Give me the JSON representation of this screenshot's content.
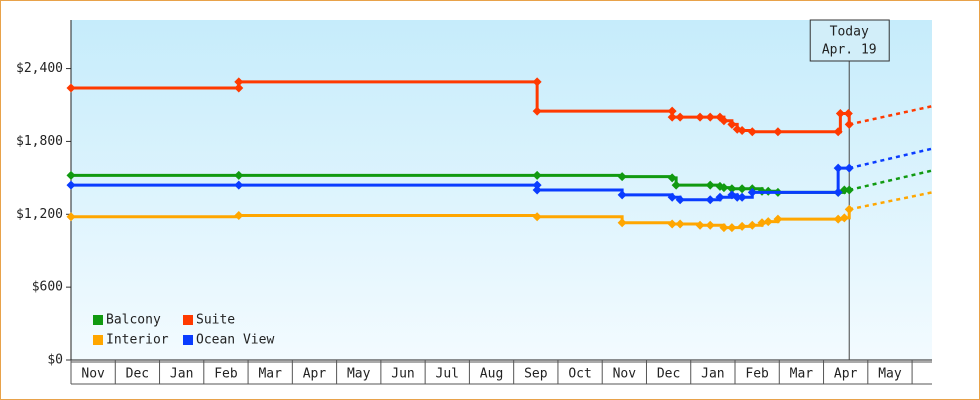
{
  "chart_data": {
    "type": "step-line",
    "categories": [
      "Nov",
      "Dec",
      "Jan",
      "Feb",
      "Mar",
      "Apr",
      "May",
      "Jun",
      "Jul",
      "Aug",
      "Sep",
      "Oct",
      "Nov",
      "Dec",
      "Jan",
      "Feb",
      "Mar",
      "Apr",
      "May"
    ],
    "xlim": [
      0,
      19.45
    ],
    "ylim": [
      0,
      2800
    ],
    "yticks": [
      {
        "value": 0,
        "label": "$0"
      },
      {
        "value": 600,
        "label": "$600"
      },
      {
        "value": 1200,
        "label": "$1,200"
      },
      {
        "value": 1800,
        "label": "$1,800"
      },
      {
        "value": 2400,
        "label": "$2,400"
      }
    ],
    "legend": "lower-left",
    "annotation": {
      "label": "Today",
      "date": "Apr. 19",
      "x": 17.58
    },
    "series": [
      {
        "name": "Balcony",
        "color": "#119a11",
        "x": [
          0,
          3.79,
          10.53,
          12.45,
          13.58,
          13.67,
          14.44,
          14.66,
          14.75,
          14.93,
          15.16,
          15.39,
          15.61,
          15.75,
          15.97,
          17.33,
          17.47,
          17.58
        ],
        "values": [
          1520,
          1520,
          1520,
          1510,
          1500,
          1440,
          1440,
          1430,
          1420,
          1410,
          1410,
          1410,
          1390,
          1390,
          1380,
          1380,
          1400,
          1400
        ],
        "projection": {
          "x": [
            17.58,
            19.45
          ],
          "values": [
            1400,
            1560
          ]
        }
      },
      {
        "name": "Suite",
        "color": "#ff3a00",
        "x": [
          0,
          3.79,
          3.79,
          10.53,
          10.53,
          13.58,
          13.58,
          13.76,
          14.21,
          14.44,
          14.66,
          14.75,
          14.93,
          15.05,
          15.16,
          15.39,
          15.97,
          17.33,
          17.38,
          17.56,
          17.58
        ],
        "values": [
          2240,
          2240,
          2290,
          2290,
          2050,
          2050,
          2000,
          2000,
          2000,
          2000,
          2000,
          1970,
          1940,
          1900,
          1890,
          1880,
          1880,
          1880,
          2030,
          2030,
          1940
        ],
        "projection": {
          "x": [
            17.58,
            19.45
          ],
          "values": [
            1940,
            2090
          ]
        }
      },
      {
        "name": "Interior",
        "color": "#ffa600",
        "x": [
          0,
          3.79,
          10.53,
          12.45,
          13.58,
          13.76,
          14.21,
          14.44,
          14.75,
          14.93,
          15.16,
          15.39,
          15.61,
          15.75,
          15.97,
          17.33,
          17.47,
          17.58
        ],
        "values": [
          1180,
          1190,
          1180,
          1130,
          1120,
          1120,
          1110,
          1110,
          1090,
          1090,
          1100,
          1110,
          1130,
          1140,
          1160,
          1160,
          1170,
          1240
        ],
        "projection": {
          "x": [
            17.58,
            19.45
          ],
          "values": [
            1240,
            1380
          ]
        }
      },
      {
        "name": "Ocean View",
        "color": "#0a3cff",
        "x": [
          0,
          3.79,
          10.53,
          10.53,
          12.45,
          13.58,
          13.76,
          14.44,
          14.66,
          14.93,
          15.05,
          15.16,
          15.39,
          17.33,
          17.33,
          17.58
        ],
        "values": [
          1440,
          1440,
          1440,
          1400,
          1360,
          1340,
          1320,
          1320,
          1340,
          1360,
          1340,
          1340,
          1380,
          1380,
          1580,
          1580
        ],
        "projection": {
          "x": [
            17.58,
            19.45
          ],
          "values": [
            1580,
            1740
          ]
        }
      }
    ]
  }
}
